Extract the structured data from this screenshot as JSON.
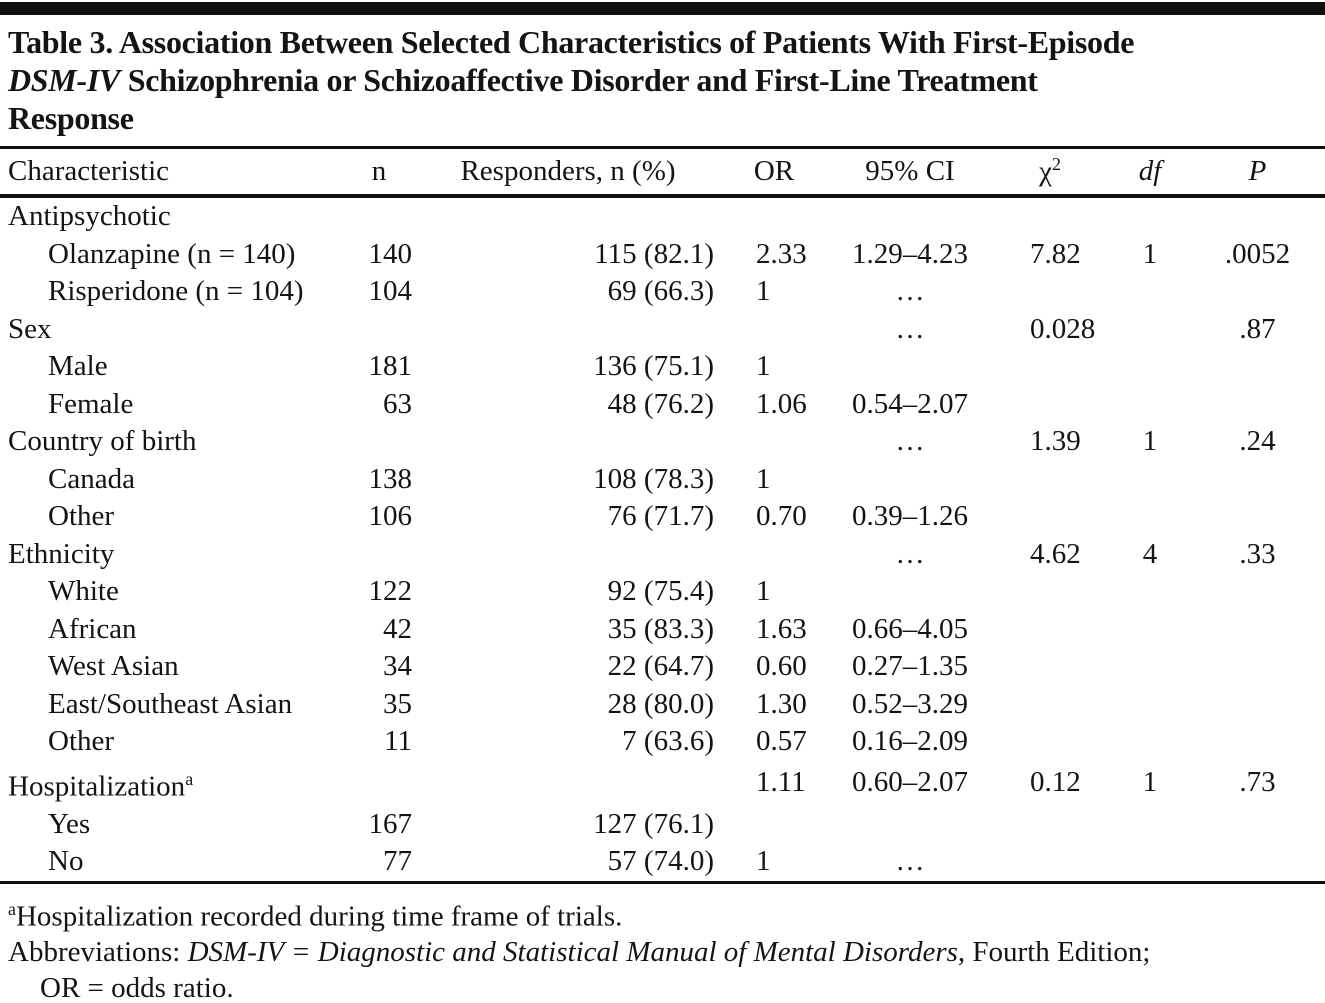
{
  "colors": {
    "text": "#141414",
    "rule": "#0f0f0f",
    "background": "#ffffff"
  },
  "title": {
    "line1": "Table 3. Association Between Selected Characteristics of Patients With First-Episode",
    "line2_italic": "DSM-IV",
    "line2_rest": " Schizophrenia or Schizoaffective Disorder and First-Line Treatment",
    "line3": "Response"
  },
  "table": {
    "headers": {
      "characteristic": "Characteristic",
      "n": "n",
      "responders": "Responders, n (%)",
      "or": "OR",
      "ci": "95% CI",
      "chi": "χ",
      "chi_sup": "2",
      "df": "df",
      "p": "P"
    },
    "rows": [
      {
        "label": "Antipsychotic",
        "n": "",
        "responders": "",
        "or": "",
        "ci": "",
        "chi": "",
        "df": "",
        "p": ""
      },
      {
        "label": "Olanzapine (n = 140)",
        "n": "140",
        "responders": "115 (82.1)",
        "or": "2.33",
        "ci": "1.29–4.23",
        "chi": "7.82",
        "df": "1",
        "p": ".0052"
      },
      {
        "label": "Risperidone (n = 104)",
        "n": "104",
        "responders": "69 (66.3)",
        "or": "1",
        "ci": "…",
        "chi": "",
        "df": "",
        "p": ""
      },
      {
        "label": "Sex",
        "n": "",
        "responders": "",
        "or": "",
        "ci": "…",
        "chi": "0.028",
        "df": "",
        "p": ".87"
      },
      {
        "label": "Male",
        "n": "181",
        "responders": "136 (75.1)",
        "or": "1",
        "ci": "",
        "chi": "",
        "df": "",
        "p": ""
      },
      {
        "label": "Female",
        "n": "63",
        "responders": "48 (76.2)",
        "or": "1.06",
        "ci": "0.54–2.07",
        "chi": "",
        "df": "",
        "p": ""
      },
      {
        "label": "Country of birth",
        "n": "",
        "responders": "",
        "or": "",
        "ci": "…",
        "chi": "1.39",
        "df": "1",
        "p": ".24"
      },
      {
        "label": "Canada",
        "n": "138",
        "responders": "108 (78.3)",
        "or": "1",
        "ci": "",
        "chi": "",
        "df": "",
        "p": ""
      },
      {
        "label": "Other",
        "n": "106",
        "responders": "76 (71.7)",
        "or": "0.70",
        "ci": "0.39–1.26",
        "chi": "",
        "df": "",
        "p": ""
      },
      {
        "label": "Ethnicity",
        "n": "",
        "responders": "",
        "or": "",
        "ci": "…",
        "chi": "4.62",
        "df": "4",
        "p": ".33"
      },
      {
        "label": "White",
        "n": "122",
        "responders": "92 (75.4)",
        "or": "1",
        "ci": "",
        "chi": "",
        "df": "",
        "p": ""
      },
      {
        "label": "African",
        "n": "42",
        "responders": "35 (83.3)",
        "or": "1.63",
        "ci": "0.66–4.05",
        "chi": "",
        "df": "",
        "p": ""
      },
      {
        "label": "West Asian",
        "n": "34",
        "responders": "22 (64.7)",
        "or": "0.60",
        "ci": "0.27–1.35",
        "chi": "",
        "df": "",
        "p": ""
      },
      {
        "label": "East/Southeast Asian",
        "n": "35",
        "responders": "28 (80.0)",
        "or": "1.30",
        "ci": "0.52–3.29",
        "chi": "",
        "df": "",
        "p": ""
      },
      {
        "label": "Other",
        "n": "11",
        "responders": "7 (63.6)",
        "or": "0.57",
        "ci": "0.16–2.09",
        "chi": "",
        "df": "",
        "p": ""
      },
      {
        "label": "Hospitalization",
        "sup": "a",
        "n": "",
        "responders": "",
        "or": "1.11",
        "ci": "0.60–2.07",
        "chi": "0.12",
        "df": "1",
        "p": ".73"
      },
      {
        "label": "Yes",
        "n": "167",
        "responders": "127 (76.1)",
        "or": "",
        "ci": "",
        "chi": "",
        "df": "",
        "p": ""
      },
      {
        "label": "No",
        "n": "77",
        "responders": "57 (74.0)",
        "or": "1",
        "ci": "…",
        "chi": "",
        "df": "",
        "p": ""
      }
    ]
  },
  "footnotes": {
    "a_sup": "a",
    "a_text": "Hospitalization recorded during time frame of trials.",
    "abbr_prefix": "Abbreviations: ",
    "abbr_italic": "DSM-IV = Diagnostic and Statistical Manual of Mental Disorders",
    "abbr_suffix": ", Fourth Edition;",
    "abbr_line2": "OR = odds ratio."
  }
}
